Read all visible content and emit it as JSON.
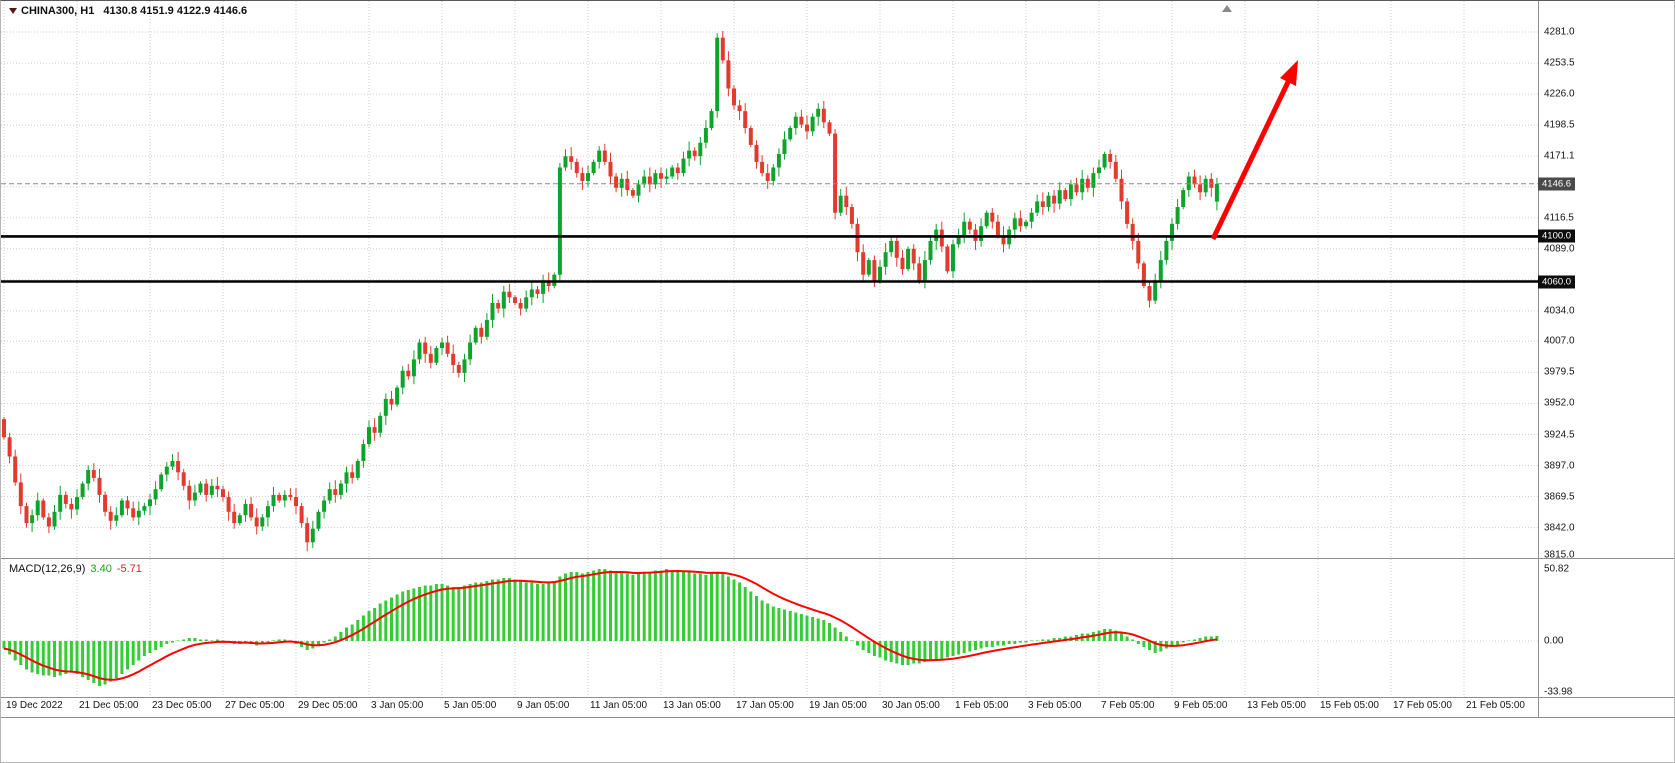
{
  "header": {
    "symbol_timeframe": "CHINA300, H1",
    "ohlc": "4130.8 4151.9 4122.9 4146.6"
  },
  "price_axis": {
    "tick_labels": [
      "4281.0",
      "4253.5",
      "4226.0",
      "4198.5",
      "4171.1",
      "4116.5",
      "4089.0",
      "4034.0",
      "4007.0",
      "3979.5",
      "3952.0",
      "3924.5",
      "3897.0",
      "3869.5",
      "3842.0",
      "3815.0"
    ],
    "hidden_grid_values": [
      4144.0,
      4061.5
    ],
    "badges": [
      {
        "name": "current-price-badge",
        "text": "4146.6",
        "value": 4146.6,
        "bg": "#4a4a4a"
      },
      {
        "name": "hline-badge-4100",
        "text": "4100.0",
        "value": 4100.0,
        "bg": "#0d0d0d"
      },
      {
        "name": "hline-badge-4060",
        "text": "4060.0",
        "value": 4060.0,
        "bg": "#0d0d0d"
      }
    ]
  },
  "time_axis": {
    "labels": [
      "19 Dec 2022",
      "21 Dec 05:00",
      "23 Dec 05:00",
      "27 Dec 05:00",
      "29 Dec 05:00",
      "3 Jan 05:00",
      "5 Jan 05:00",
      "9 Jan 05:00",
      "11 Jan 05:00",
      "13 Jan 05:00",
      "17 Jan 05:00",
      "19 Jan 05:00",
      "30 Jan 05:00",
      "1 Feb 05:00",
      "3 Feb 05:00",
      "7 Feb 05:00",
      "9 Feb 05:00",
      "13 Feb 05:00",
      "15 Feb 05:00",
      "17 Feb 05:00",
      "21 Feb 05:00"
    ]
  },
  "macd_panel": {
    "label": "MACD(12,26,9)",
    "value_main": "3.40",
    "value_signal": "-5.71",
    "axis_labels": [
      "50.82",
      "0.00",
      "-33.98"
    ]
  },
  "annotations": {
    "arrow": {
      "type": "trend-arrow",
      "color": "#ff0000",
      "direction": "up-right",
      "from_price": 4100.0,
      "to_price": 4250.0
    },
    "horizontal_lines": [
      {
        "price": 4100.0,
        "color": "#000000"
      },
      {
        "price": 4060.0,
        "color": "#000000"
      }
    ],
    "current_price_line": {
      "price": 4146.6,
      "style": "dashed"
    }
  },
  "colors": {
    "bull": "#0fa32c",
    "bear": "#e23a2e",
    "macd_hist": "#35cc35",
    "macd_signal": "#ff0000",
    "grid": "#cfcfcf",
    "hline": "#000000",
    "price_line": "#8a8a8a",
    "arrow": "#ff0000",
    "shift_marker": "#8a8a8a"
  },
  "chart_data": [
    {
      "id": "price",
      "type": "candlestick",
      "title": "CHINA300 H1",
      "ylim": [
        3815.0,
        4281.0
      ],
      "y_tick_step": 27.5,
      "bars_per_x_tick": 13,
      "first_open": 3938,
      "closes": [
        3922,
        3905,
        3882,
        3861,
        3846,
        3853,
        3866,
        3851,
        3843,
        3856,
        3871,
        3863,
        3858,
        3869,
        3881,
        3893,
        3886,
        3871,
        3856,
        3848,
        3853,
        3866,
        3859,
        3851,
        3857,
        3861,
        3867,
        3876,
        3889,
        3896,
        3901,
        3891,
        3879,
        3866,
        3873,
        3881,
        3871,
        3879,
        3876,
        3869,
        3856,
        3846,
        3853,
        3863,
        3851,
        3843,
        3851,
        3861,
        3871,
        3866,
        3871,
        3869,
        3861,
        3846,
        3829,
        3841,
        3856,
        3866,
        3876,
        3871,
        3881,
        3891,
        3886,
        3901,
        3916,
        3931,
        3926,
        3941,
        3956,
        3951,
        3966,
        3981,
        3976,
        3991,
        4006,
        3996,
        3988,
        4001,
        4006,
        3996,
        3986,
        3979,
        3991,
        4006,
        4019,
        4011,
        4026,
        4041,
        4036,
        4051,
        4046,
        4041,
        4036,
        4046,
        4053,
        4049,
        4061,
        4056,
        4066,
        4161,
        4171,
        4166,
        4156,
        4149,
        4156,
        4166,
        4176,
        4166,
        4153,
        4143,
        4151,
        4141,
        4136,
        4146,
        4153,
        4146,
        4156,
        4151,
        4153,
        4161,
        4156,
        4169,
        4176,
        4171,
        4183,
        4196,
        4211,
        4276,
        4256,
        4231,
        4216,
        4211,
        4196,
        4181,
        4166,
        4156,
        4149,
        4161,
        4173,
        4186,
        4196,
        4206,
        4199,
        4193,
        4206,
        4213,
        4201,
        4191,
        4121,
        4136,
        4126,
        4111,
        4086,
        4066,
        4079,
        4061,
        4073,
        4086,
        4096,
        4081,
        4071,
        4089,
        4076,
        4061,
        4079,
        4096,
        4106,
        4091,
        4069,
        4093,
        4101,
        4113,
        4106,
        4096,
        4109,
        4121,
        4113,
        4101,
        4093,
        4106,
        4116,
        4109,
        4113,
        4121,
        4131,
        4126,
        4136,
        4129,
        4141,
        4133,
        4146,
        4139,
        4151,
        4143,
        4156,
        4161,
        4173,
        4166,
        4151,
        4131,
        4111,
        4096,
        4076,
        4056,
        4043,
        4061,
        4079,
        4096,
        4111,
        4126,
        4141,
        4153,
        4146,
        4139,
        4151,
        4143,
        4146.6
      ],
      "last_candle_ohlc": [
        4130.8,
        4151.9,
        4122.9,
        4146.6
      ],
      "levels": [
        4100.0,
        4060.0
      ],
      "current_price": 4146.6
    },
    {
      "id": "macd",
      "type": "bar",
      "title": "MACD(12,26,9)",
      "axis_ticks": [
        50.82,
        0.0,
        -33.98
      ],
      "last_main": 3.4,
      "last_signal": -5.71,
      "signal_method": "ema9",
      "values": [
        -5,
        -9,
        -13,
        -16,
        -19,
        -21,
        -22,
        -23,
        -23,
        -24,
        -23,
        -22,
        -21,
        -22,
        -24,
        -26,
        -28,
        -30,
        -29,
        -27,
        -25,
        -22,
        -19,
        -16,
        -13,
        -10,
        -8,
        -6,
        -4,
        -2,
        -1,
        0,
        1,
        2,
        2,
        1,
        1,
        0,
        1,
        0,
        -1,
        -2,
        -2,
        -1,
        -2,
        -3,
        -2,
        -1,
        0,
        1,
        1,
        0,
        -2,
        -4,
        -6,
        -5,
        -3,
        -1,
        1,
        3,
        6,
        9,
        11,
        14,
        17,
        20,
        22,
        25,
        27,
        29,
        31,
        33,
        34,
        35,
        36,
        37,
        37,
        38,
        38,
        37,
        36,
        36,
        37,
        38,
        39,
        39,
        40,
        41,
        41,
        42,
        42,
        41,
        40,
        39,
        39,
        38,
        38,
        39,
        40,
        43,
        45,
        46,
        46,
        45,
        46,
        47,
        48,
        48,
        47,
        46,
        46,
        45,
        44,
        45,
        46,
        46,
        47,
        47,
        48,
        47,
        47,
        46,
        46,
        45,
        45,
        44,
        45,
        46,
        45,
        43,
        41,
        39,
        36,
        33,
        30,
        27,
        25,
        23,
        22,
        21,
        20,
        19,
        18,
        17,
        16,
        15,
        14,
        12,
        9,
        6,
        3,
        0,
        -3,
        -6,
        -8,
        -10,
        -11,
        -13,
        -14,
        -15,
        -16,
        -16,
        -15,
        -15,
        -14,
        -13,
        -12,
        -12,
        -11,
        -10,
        -9,
        -8,
        -7,
        -6,
        -5,
        -4,
        -4,
        -3,
        -3,
        -2,
        -2,
        -1,
        -1,
        0,
        0,
        1,
        1,
        2,
        2,
        3,
        3,
        4,
        5,
        5,
        6,
        7,
        8,
        8,
        7,
        5,
        3,
        1,
        -2,
        -4,
        -6,
        -8,
        -7,
        -5,
        -4,
        -3,
        -1,
        0,
        1,
        2,
        3,
        3,
        3.4
      ]
    }
  ]
}
